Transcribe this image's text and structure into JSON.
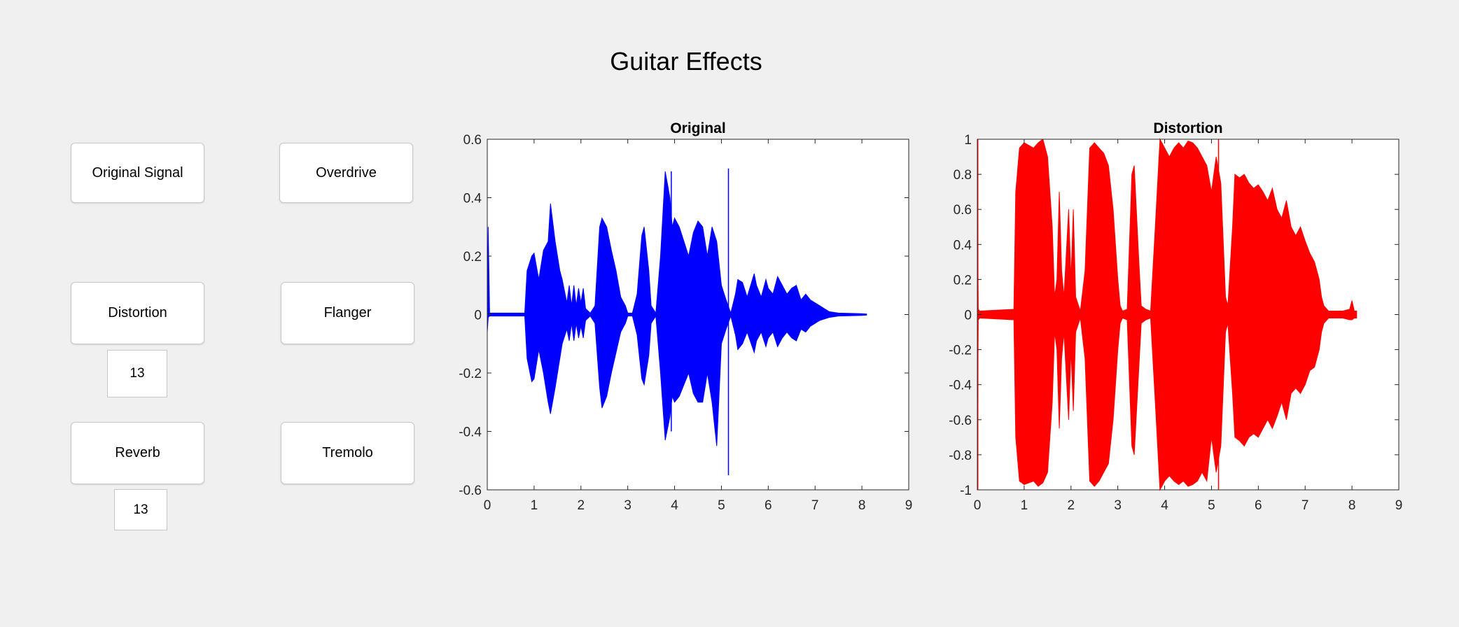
{
  "window": {
    "title": "Guitar Effects"
  },
  "buttons": {
    "original_signal": "Original Signal",
    "overdrive": "Overdrive",
    "distortion": "Distortion",
    "flanger": "Flanger",
    "reverb": "Reverb",
    "tremolo": "Tremolo"
  },
  "fields": {
    "distortion_value": "13",
    "reverb_value": "13"
  },
  "chart_data": [
    {
      "type": "line",
      "title": "Original",
      "color": "#0000ff",
      "xlim": [
        0,
        9
      ],
      "ylim": [
        -0.6,
        0.6
      ],
      "xticks": [
        0,
        1,
        2,
        3,
        4,
        5,
        6,
        7,
        8,
        9
      ],
      "yticks": [
        -0.6,
        -0.4,
        -0.2,
        0,
        0.2,
        0.4,
        0.6
      ],
      "ytick_labels": [
        "-0.6",
        "-0.4",
        "-0.2",
        "0",
        "0.2",
        "0.4",
        "0.6"
      ],
      "envelope": {
        "x": [
          0,
          0.02,
          0.05,
          0.8,
          0.85,
          0.95,
          1.0,
          1.1,
          1.2,
          1.3,
          1.35,
          1.45,
          1.55,
          1.6,
          1.7,
          1.75,
          1.8,
          1.85,
          1.9,
          1.95,
          2.0,
          2.05,
          2.1,
          2.2,
          2.3,
          2.4,
          2.45,
          2.55,
          2.65,
          2.75,
          2.85,
          2.95,
          3.0,
          3.1,
          3.2,
          3.3,
          3.35,
          3.45,
          3.5,
          3.6,
          3.7,
          3.8,
          3.9,
          3.95,
          4.0,
          4.1,
          4.2,
          4.3,
          4.4,
          4.5,
          4.6,
          4.7,
          4.8,
          4.9,
          5.0,
          5.1,
          5.2,
          5.3,
          5.35,
          5.45,
          5.55,
          5.7,
          5.75,
          5.85,
          5.95,
          6.0,
          6.1,
          6.2,
          6.3,
          6.4,
          6.5,
          6.6,
          6.7,
          6.8,
          6.9,
          7.0,
          7.1,
          7.2,
          7.3,
          7.5,
          8.0,
          8.1
        ],
        "top": [
          0.01,
          0.3,
          0.005,
          0.005,
          0.15,
          0.2,
          0.21,
          0.12,
          0.22,
          0.25,
          0.38,
          0.25,
          0.15,
          0.12,
          0.04,
          0.1,
          0.03,
          0.1,
          0.03,
          0.09,
          0.04,
          0.09,
          0.02,
          0.005,
          0.03,
          0.3,
          0.33,
          0.3,
          0.22,
          0.15,
          0.06,
          0.03,
          0.005,
          0.005,
          0.07,
          0.27,
          0.3,
          0.15,
          0.03,
          0.005,
          0.2,
          0.49,
          0.4,
          0.3,
          0.33,
          0.3,
          0.25,
          0.2,
          0.28,
          0.32,
          0.3,
          0.2,
          0.3,
          0.25,
          0.1,
          0.05,
          0.005,
          0.07,
          0.12,
          0.11,
          0.06,
          0.14,
          0.1,
          0.06,
          0.12,
          0.09,
          0.07,
          0.13,
          0.1,
          0.07,
          0.09,
          0.1,
          0.05,
          0.07,
          0.05,
          0.04,
          0.03,
          0.02,
          0.01,
          0.005,
          0.003,
          0.002
        ],
        "bottom": [
          -0.06,
          -0.01,
          -0.005,
          -0.005,
          -0.15,
          -0.23,
          -0.22,
          -0.12,
          -0.2,
          -0.3,
          -0.34,
          -0.25,
          -0.15,
          -0.1,
          -0.05,
          -0.09,
          -0.03,
          -0.09,
          -0.03,
          -0.08,
          -0.04,
          -0.08,
          -0.02,
          -0.005,
          -0.03,
          -0.25,
          -0.32,
          -0.28,
          -0.2,
          -0.13,
          -0.06,
          -0.03,
          -0.005,
          -0.005,
          -0.07,
          -0.22,
          -0.24,
          -0.14,
          -0.03,
          -0.005,
          -0.2,
          -0.43,
          -0.35,
          -0.28,
          -0.3,
          -0.28,
          -0.24,
          -0.2,
          -0.27,
          -0.3,
          -0.3,
          -0.2,
          -0.3,
          -0.45,
          -0.1,
          -0.05,
          -0.005,
          -0.07,
          -0.12,
          -0.1,
          -0.06,
          -0.13,
          -0.09,
          -0.06,
          -0.11,
          -0.08,
          -0.06,
          -0.11,
          -0.08,
          -0.06,
          -0.08,
          -0.09,
          -0.05,
          -0.06,
          -0.04,
          -0.03,
          -0.02,
          -0.015,
          -0.01,
          -0.005,
          -0.003,
          -0.002
        ]
      },
      "spikes": [
        {
          "x": 5.15,
          "y": [
            -0.55,
            0.5
          ]
        },
        {
          "x": 3.93,
          "y": [
            -0.4,
            0.49
          ]
        }
      ]
    },
    {
      "type": "line",
      "title": "Distortion",
      "color": "#ff0000",
      "xlim": [
        0,
        9
      ],
      "ylim": [
        -1,
        1
      ],
      "xticks": [
        0,
        1,
        2,
        3,
        4,
        5,
        6,
        7,
        8,
        9
      ],
      "yticks": [
        -1,
        -0.8,
        -0.6,
        -0.4,
        -0.2,
        0,
        0.2,
        0.4,
        0.6,
        0.8,
        1
      ],
      "ytick_labels": [
        "-1",
        "-0.8",
        "-0.6",
        "-0.4",
        "-0.2",
        "0",
        "0.2",
        "0.4",
        "0.6",
        "0.8",
        "1"
      ],
      "envelope": {
        "x": [
          0,
          0.02,
          0.05,
          0.78,
          0.82,
          0.9,
          1.0,
          1.2,
          1.3,
          1.4,
          1.5,
          1.6,
          1.65,
          1.7,
          1.75,
          1.8,
          1.85,
          1.95,
          2.0,
          2.05,
          2.1,
          2.2,
          2.3,
          2.4,
          2.5,
          2.6,
          2.7,
          2.8,
          2.9,
          3.0,
          3.05,
          3.1,
          3.2,
          3.3,
          3.35,
          3.45,
          3.5,
          3.6,
          3.7,
          3.8,
          3.9,
          4.0,
          4.1,
          4.2,
          4.3,
          4.4,
          4.5,
          4.6,
          4.7,
          4.8,
          4.9,
          5.0,
          5.1,
          5.2,
          5.3,
          5.35,
          5.45,
          5.5,
          5.6,
          5.7,
          5.8,
          5.9,
          6.0,
          6.1,
          6.2,
          6.3,
          6.4,
          6.5,
          6.6,
          6.7,
          6.8,
          6.9,
          7.0,
          7.1,
          7.2,
          7.3,
          7.35,
          7.4,
          7.5,
          7.8,
          7.95,
          8.0,
          8.05,
          8.1
        ],
        "top": [
          0.9,
          0.03,
          0.02,
          0.03,
          0.7,
          0.95,
          0.98,
          0.95,
          0.98,
          1.0,
          0.9,
          0.5,
          0.1,
          0.2,
          0.7,
          0.25,
          0.1,
          0.6,
          0.2,
          0.6,
          0.1,
          0.02,
          0.25,
          0.95,
          0.98,
          0.95,
          0.92,
          0.85,
          0.6,
          0.2,
          0.05,
          0.02,
          0.03,
          0.8,
          0.85,
          0.3,
          0.05,
          0.03,
          0.02,
          0.5,
          1.0,
          0.95,
          0.9,
          0.95,
          0.98,
          0.95,
          0.99,
          0.98,
          0.95,
          0.9,
          0.85,
          0.7,
          0.9,
          0.75,
          0.1,
          0.05,
          0.5,
          0.8,
          0.78,
          0.8,
          0.75,
          0.72,
          0.74,
          0.7,
          0.65,
          0.72,
          0.6,
          0.55,
          0.65,
          0.5,
          0.45,
          0.5,
          0.42,
          0.35,
          0.3,
          0.2,
          0.1,
          0.05,
          0.02,
          0.02,
          0.03,
          0.08,
          0.02,
          0.02
        ],
        "bottom": [
          -0.9,
          -0.03,
          -0.02,
          -0.03,
          -0.7,
          -0.95,
          -0.97,
          -0.95,
          -0.98,
          -0.96,
          -0.9,
          -0.5,
          -0.1,
          -0.2,
          -0.65,
          -0.25,
          -0.1,
          -0.6,
          -0.2,
          -0.55,
          -0.1,
          -0.02,
          -0.25,
          -0.95,
          -0.98,
          -0.95,
          -0.9,
          -0.85,
          -0.6,
          -0.2,
          -0.05,
          -0.02,
          -0.03,
          -0.75,
          -0.8,
          -0.3,
          -0.05,
          -0.03,
          -0.02,
          -0.5,
          -1.0,
          -0.95,
          -0.92,
          -0.95,
          -0.97,
          -0.95,
          -0.98,
          -0.97,
          -0.95,
          -0.9,
          -0.95,
          -0.7,
          -0.9,
          -0.75,
          -0.1,
          -0.05,
          -0.45,
          -0.7,
          -0.72,
          -0.75,
          -0.7,
          -0.68,
          -0.7,
          -0.65,
          -0.6,
          -0.65,
          -0.58,
          -0.5,
          -0.6,
          -0.45,
          -0.42,
          -0.45,
          -0.4,
          -0.32,
          -0.3,
          -0.2,
          -0.1,
          -0.05,
          -0.02,
          -0.02,
          -0.03,
          -0.03,
          -0.02,
          -0.02
        ]
      },
      "spikes": [
        {
          "x": 5.15,
          "y": [
            -1.0,
            1.0
          ]
        },
        {
          "x": 0.01,
          "y": [
            -1.0,
            1.0
          ]
        }
      ]
    }
  ]
}
